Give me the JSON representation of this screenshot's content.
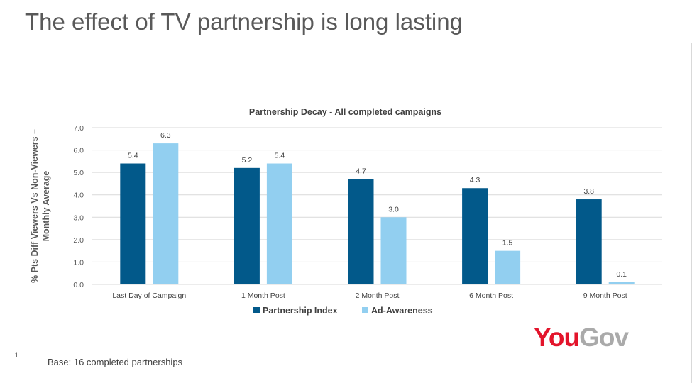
{
  "slide": {
    "title": "The effect of TV partnership is long lasting",
    "page_number": "1",
    "base_note": "Base: 16 completed partnerships",
    "logo": {
      "part1": "You",
      "part2": "Gov"
    }
  },
  "colors": {
    "partnership_index": "#02598a",
    "ad_awareness": "#92cff0",
    "gridline": "#d9d9d9",
    "text": "#404040"
  },
  "chart_data": {
    "type": "bar",
    "title": "Partnership Decay - All completed campaigns",
    "xlabel": "",
    "ylabel": "% Pts Diff Viewers Vs Non-Viewers –\nMonthly Average",
    "ylim": [
      0,
      7
    ],
    "yticks": [
      "0.0",
      "1.0",
      "2.0",
      "3.0",
      "4.0",
      "5.0",
      "6.0",
      "7.0"
    ],
    "categories": [
      "Last Day of Campaign",
      "1 Month Post",
      "2 Month Post",
      "6 Month Post",
      "9 Month Post"
    ],
    "series": [
      {
        "name": "Partnership Index",
        "values": [
          5.4,
          5.2,
          4.7,
          4.3,
          3.8
        ],
        "labels": [
          "5.4",
          "5.2",
          "4.7",
          "4.3",
          "3.8"
        ]
      },
      {
        "name": "Ad-Awareness",
        "values": [
          6.3,
          5.4,
          3.0,
          1.5,
          0.1
        ],
        "labels": [
          "6.3",
          "5.4",
          "3.0",
          "1.5",
          "0.1"
        ]
      }
    ],
    "legend": "bottom",
    "grid": true
  }
}
